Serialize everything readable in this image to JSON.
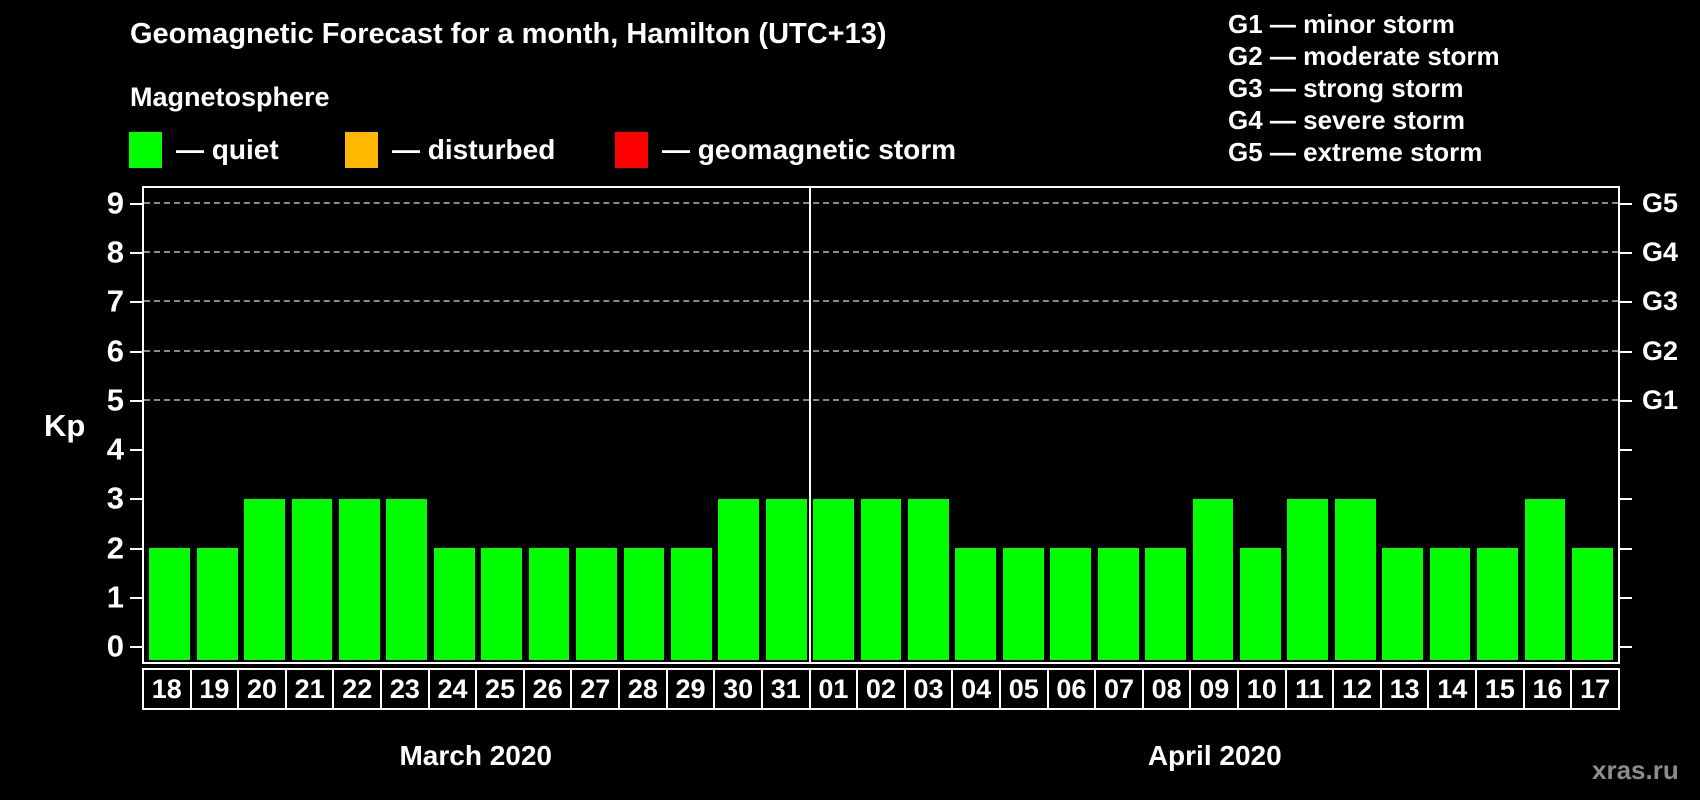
{
  "header": {
    "title": "Geomagnetic Forecast for a month, Hamilton (UTC+13)",
    "subtitle": "Magnetosphere",
    "series_legend": [
      {
        "name": "quiet",
        "label": "— quiet",
        "color": "#00ff00"
      },
      {
        "name": "disturbed",
        "label": "— disturbed",
        "color": "#ffb800"
      },
      {
        "name": "storm",
        "label": "— geomagnetic storm",
        "color": "#ff0000"
      }
    ],
    "g_scale_legend": [
      "G1 — minor storm",
      "G2 — moderate storm",
      "G3 — strong storm",
      "G4 — severe storm",
      "G5 — extreme storm"
    ]
  },
  "chart_data": {
    "type": "bar",
    "title": "Geomagnetic Forecast for a month, Hamilton (UTC+13)",
    "subtitle": "Magnetosphere",
    "ylabel": "Kp",
    "ylim": [
      -0.3,
      9.32
    ],
    "yticks": [
      0,
      1,
      2,
      3,
      4,
      5,
      6,
      7,
      8,
      9
    ],
    "gridlines_at_kp": [
      5,
      6,
      7,
      8,
      9
    ],
    "grid_style": "dashed",
    "right_axis_labels": [
      {
        "kp": 5,
        "label": "G1"
      },
      {
        "kp": 6,
        "label": "G2"
      },
      {
        "kp": 7,
        "label": "G3"
      },
      {
        "kp": 8,
        "label": "G4"
      },
      {
        "kp": 9,
        "label": "G5"
      }
    ],
    "categories": [
      "18",
      "19",
      "20",
      "21",
      "22",
      "23",
      "24",
      "25",
      "26",
      "27",
      "28",
      "29",
      "30",
      "31",
      "01",
      "02",
      "03",
      "04",
      "05",
      "06",
      "07",
      "08",
      "09",
      "10",
      "11",
      "12",
      "13",
      "14",
      "15",
      "16",
      "17"
    ],
    "values": [
      2,
      2,
      3,
      3,
      3,
      3,
      2,
      2,
      2,
      2,
      2,
      2,
      3,
      3,
      3,
      3,
      3,
      2,
      2,
      2,
      2,
      2,
      3,
      2,
      3,
      3,
      2,
      2,
      2,
      3,
      2
    ],
    "status_per_bar": "quiet",
    "bar_color": "#00ff00",
    "months": [
      {
        "label": "March 2020",
        "days": 14
      },
      {
        "label": "April 2020",
        "days": 17
      }
    ],
    "divider_after_index": 13,
    "legend_position": "top-left",
    "background": "#000000"
  },
  "watermark": "xras.ru",
  "colors": {
    "background": "#000000",
    "quiet": "#00ff00",
    "disturbed": "#ffb800",
    "storm": "#ff0000",
    "axis": "#ffffff",
    "grid": "#8a8a8a",
    "watermark": "#8c8c8c"
  }
}
